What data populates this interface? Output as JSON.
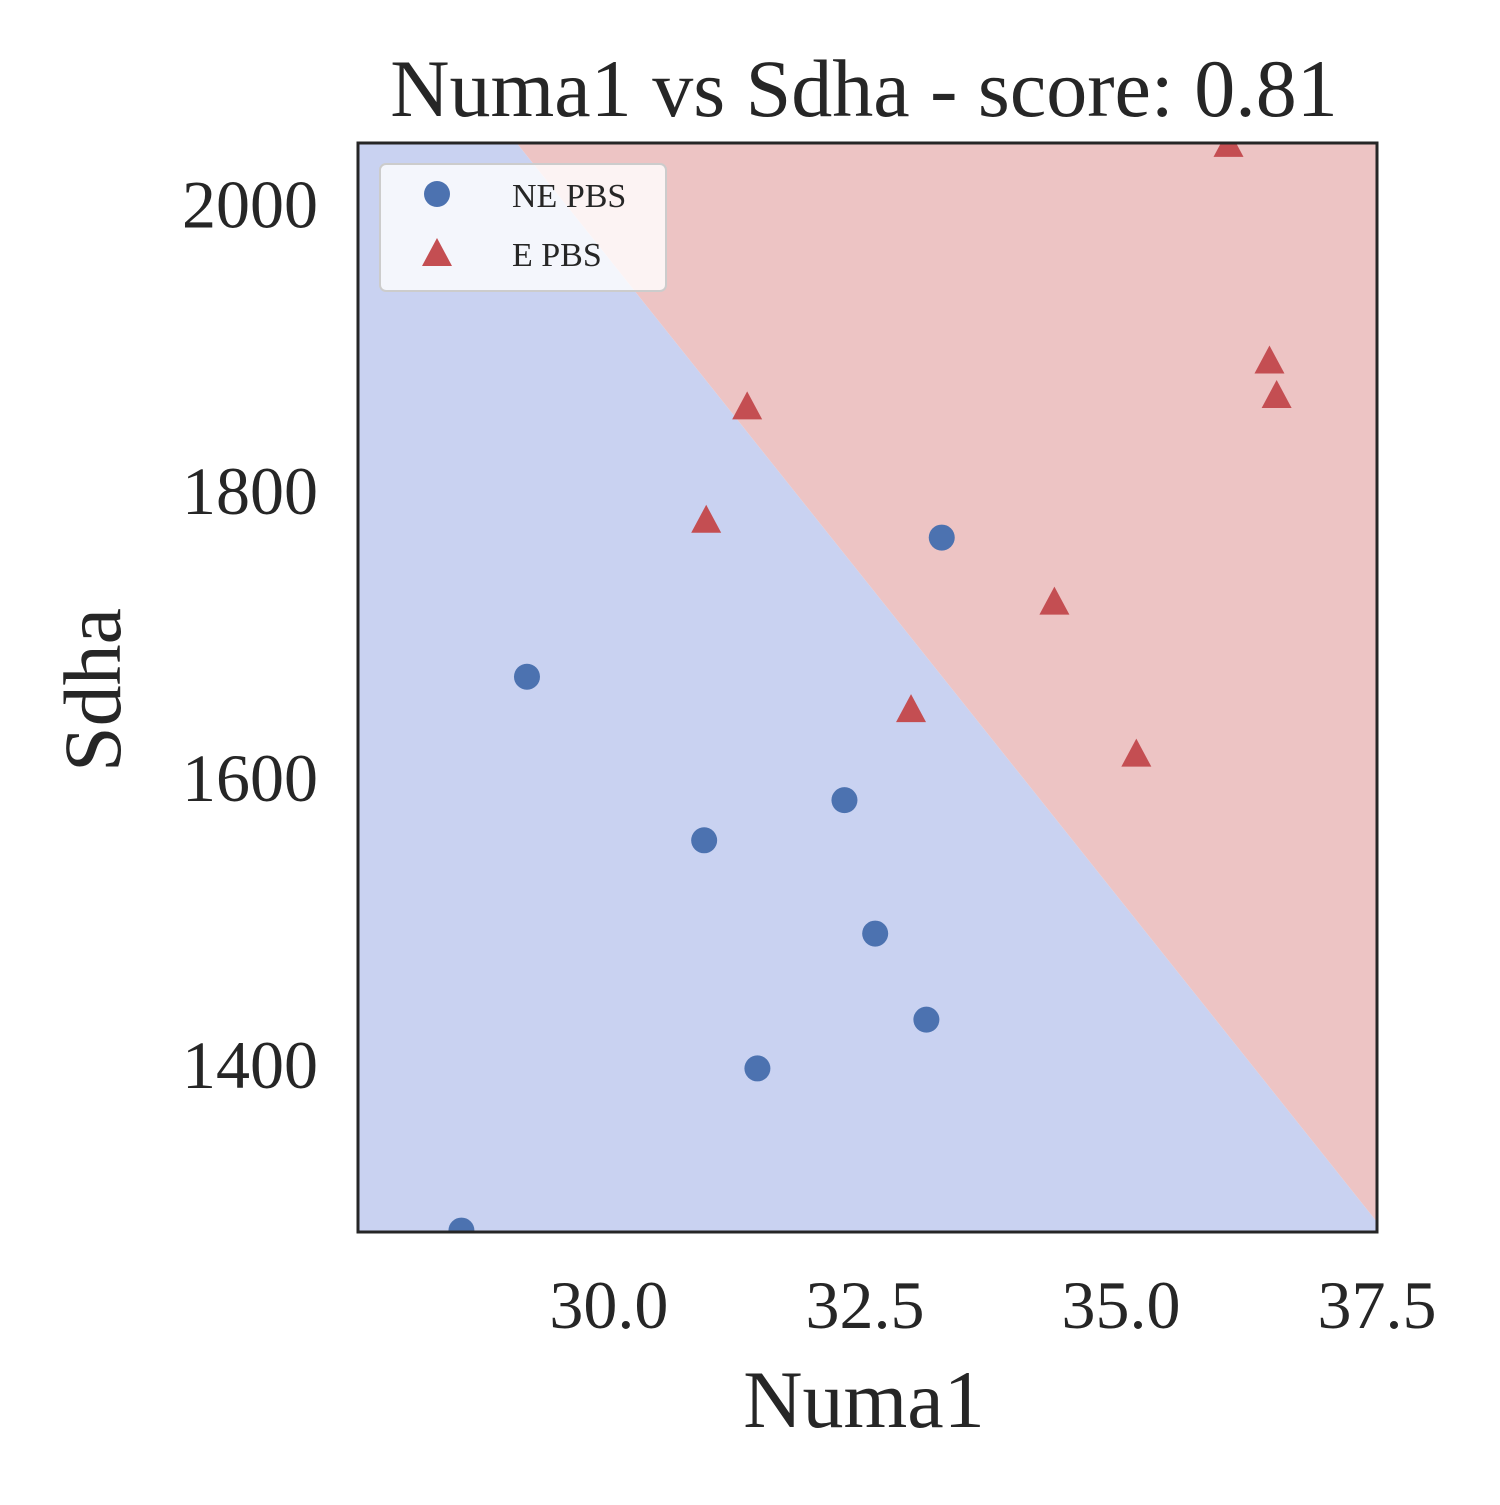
{
  "chart_data": {
    "type": "scatter",
    "title": "Numa1 vs Sdha - score: 0.81",
    "xlabel": "Numa1",
    "ylabel": "Sdha",
    "xlim": [
      27.55,
      37.5
    ],
    "ylim": [
      1283,
      2042
    ],
    "x_ticks": [
      "30.0",
      "32.5",
      "35.0",
      "37.5"
    ],
    "x_tick_values": [
      30.0,
      32.5,
      35.0,
      37.5
    ],
    "y_ticks": [
      "1400",
      "1600",
      "1800",
      "2000"
    ],
    "y_tick_values": [
      1400,
      1600,
      1800,
      2000
    ],
    "grid": false,
    "legend_position": "top-left",
    "decision_boundary": {
      "points": [
        [
          29.1,
          2042
        ],
        [
          37.5,
          1290
        ]
      ],
      "region_below_color": "#c9d2f1",
      "region_above_color": "#edc4c4"
    },
    "series": [
      {
        "name": "NE PBS",
        "marker": "circle",
        "color": "#4c72b0",
        "points": [
          [
            28.56,
            1284
          ],
          [
            29.2,
            1670
          ],
          [
            30.93,
            1556
          ],
          [
            31.45,
            1397
          ],
          [
            32.3,
            1584
          ],
          [
            32.6,
            1491
          ],
          [
            33.1,
            1431
          ],
          [
            33.25,
            1767
          ]
        ]
      },
      {
        "name": "E PBS",
        "marker": "triangle",
        "color": "#c44e52",
        "points": [
          [
            30.95,
            1778
          ],
          [
            31.35,
            1857
          ],
          [
            32.95,
            1646
          ],
          [
            34.35,
            1721
          ],
          [
            35.15,
            1615
          ],
          [
            36.05,
            2040
          ],
          [
            36.45,
            1889
          ],
          [
            36.52,
            1865
          ]
        ]
      }
    ]
  }
}
